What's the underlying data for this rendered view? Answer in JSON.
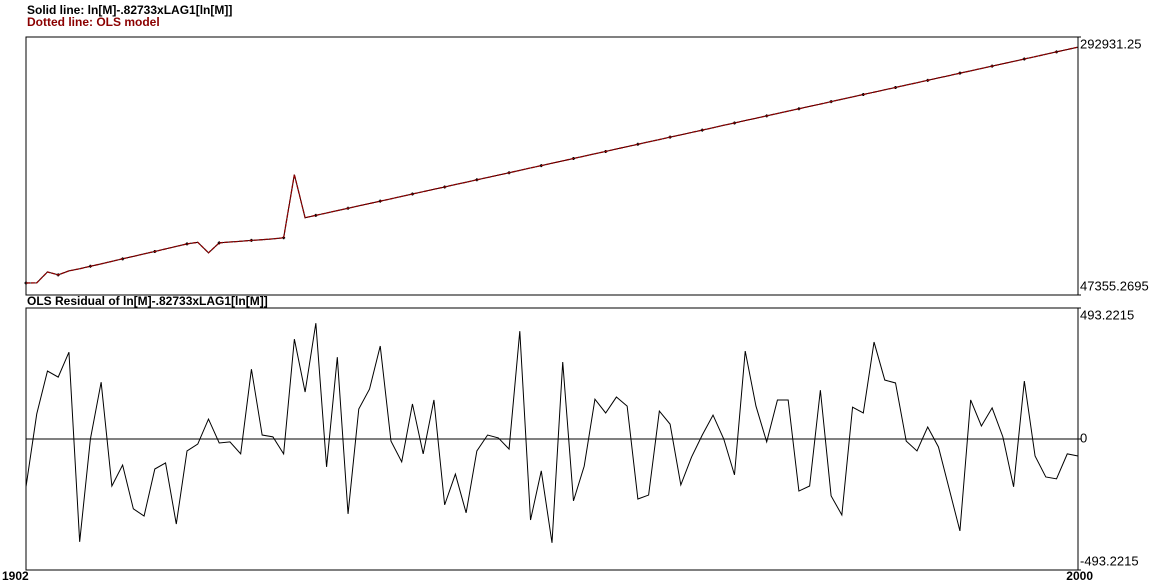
{
  "chart_data": [
    {
      "type": "line",
      "x": [
        1902,
        1903,
        1904,
        1905,
        1906,
        1907,
        1908,
        1909,
        1910,
        1911,
        1912,
        1913,
        1914,
        1915,
        1916,
        1917,
        1918,
        1919,
        1920,
        1921,
        1922,
        1923,
        1924,
        1925,
        1926,
        1927,
        1928,
        1929,
        1930,
        1931,
        1932,
        1933,
        1934,
        1935,
        1936,
        1937,
        1938,
        1939,
        1940,
        1941,
        1942,
        1943,
        1944,
        1945,
        1946,
        1947,
        1948,
        1949,
        1950,
        1951,
        1952,
        1953,
        1954,
        1955,
        1956,
        1957,
        1958,
        1959,
        1960,
        1961,
        1962,
        1963,
        1964,
        1965,
        1966,
        1967,
        1968,
        1969,
        1970,
        1971,
        1972,
        1973,
        1974,
        1975,
        1976,
        1977,
        1978,
        1979,
        1980,
        1981,
        1982,
        1983,
        1984,
        1985,
        1986,
        1987,
        1988,
        1989,
        1990,
        1991,
        1992,
        1993,
        1994,
        1995,
        1996,
        1997,
        1998,
        1999,
        2000
      ],
      "xlim": [
        1902,
        2000
      ],
      "ylim": [
        47355.2695,
        292931.25
      ],
      "yticks": [
        47355.2695,
        292931.25
      ],
      "series": [
        {
          "name": "Solid line: ln[M]-.82733xLAG1[ln[M]]",
          "color": "#000000",
          "values": [
            58800,
            58900,
            69300,
            66500,
            70300,
            72300,
            74700,
            77000,
            79400,
            81800,
            84100,
            86500,
            88800,
            91200,
            93600,
            96000,
            97500,
            87500,
            97000,
            97800,
            98500,
            99300,
            100000,
            100800,
            101800,
            162000,
            120900,
            123200,
            125400,
            127700,
            129900,
            132200,
            134400,
            136700,
            138900,
            141200,
            143500,
            145700,
            148000,
            150200,
            152500,
            154700,
            157000,
            159200,
            161500,
            163700,
            166000,
            168300,
            170500,
            172800,
            175000,
            177300,
            179500,
            181800,
            184000,
            186300,
            188600,
            190800,
            193100,
            195300,
            197600,
            199800,
            202100,
            204300,
            206600,
            208900,
            211100,
            213400,
            215600,
            217900,
            220100,
            222400,
            224600,
            226900,
            229100,
            231400,
            233700,
            235900,
            238200,
            240400,
            242700,
            244900,
            247200,
            249400,
            251700,
            254000,
            256200,
            258500,
            260700,
            263000,
            265200,
            267500,
            269700,
            272000,
            274200,
            276500,
            278800,
            281000,
            283300
          ]
        },
        {
          "name": "Dotted line: OLS model",
          "color": "#8b0000",
          "values": [
            58800,
            58900,
            69300,
            66500,
            70300,
            72300,
            74700,
            77000,
            79400,
            81800,
            84100,
            86500,
            88800,
            91200,
            93600,
            96000,
            97500,
            87500,
            97000,
            97800,
            98500,
            99300,
            100000,
            100800,
            101800,
            162000,
            120900,
            123200,
            125400,
            127700,
            129900,
            132200,
            134400,
            136700,
            138900,
            141200,
            143500,
            145700,
            148000,
            150200,
            152500,
            154700,
            157000,
            159200,
            161500,
            163700,
            166000,
            168300,
            170500,
            172800,
            175000,
            177300,
            179500,
            181800,
            184000,
            186300,
            188600,
            190800,
            193100,
            195300,
            197600,
            199800,
            202100,
            204300,
            206600,
            208900,
            211100,
            213400,
            215600,
            217900,
            220100,
            222400,
            224600,
            226900,
            229100,
            231400,
            233700,
            235900,
            238200,
            240400,
            242700,
            244900,
            247200,
            249400,
            251700,
            254000,
            256200,
            258500,
            260700,
            263000,
            265200,
            267500,
            269700,
            272000,
            274200,
            276500,
            278800,
            281000,
            283300
          ]
        }
      ]
    },
    {
      "type": "line",
      "title": "OLS Residual of ln[M]-.82733xLAG1[ln[M]]",
      "color": "#000000",
      "x": [
        1902,
        1903,
        1904,
        1905,
        1906,
        1907,
        1908,
        1909,
        1910,
        1911,
        1912,
        1913,
        1914,
        1915,
        1916,
        1917,
        1918,
        1919,
        1920,
        1921,
        1922,
        1923,
        1924,
        1925,
        1926,
        1927,
        1928,
        1929,
        1930,
        1931,
        1932,
        1933,
        1934,
        1935,
        1936,
        1937,
        1938,
        1939,
        1940,
        1941,
        1942,
        1943,
        1944,
        1945,
        1946,
        1947,
        1948,
        1949,
        1950,
        1951,
        1952,
        1953,
        1954,
        1955,
        1956,
        1957,
        1958,
        1959,
        1960,
        1961,
        1962,
        1963,
        1964,
        1965,
        1966,
        1967,
        1968,
        1969,
        1970,
        1971,
        1972,
        1973,
        1974,
        1975,
        1976,
        1977,
        1978,
        1979,
        1980,
        1981,
        1982,
        1983,
        1984,
        1985,
        1986,
        1987,
        1988,
        1989,
        1990,
        1991,
        1992,
        1993,
        1994,
        1995,
        1996,
        1997,
        1998,
        1999,
        2000
      ],
      "values": [
        -180,
        94,
        256,
        233,
        327,
        -387,
        0,
        214,
        -177,
        -98,
        -263,
        -290,
        -113,
        -90,
        -320,
        -45,
        -19,
        75,
        -15,
        -11,
        -56,
        263,
        15,
        8,
        -56,
        376,
        177,
        436,
        -105,
        308,
        -282,
        113,
        188,
        350,
        -8,
        -86,
        132,
        -56,
        147,
        -248,
        -132,
        -278,
        -45,
        15,
        4,
        -38,
        406,
        -305,
        -120,
        -391,
        290,
        -233,
        -102,
        150,
        98,
        158,
        124,
        -226,
        -211,
        105,
        56,
        -173,
        -68,
        15,
        90,
        0,
        -135,
        331,
        124,
        -11,
        147,
        147,
        -196,
        -177,
        184,
        -214,
        -286,
        120,
        98,
        365,
        222,
        211,
        -8,
        -45,
        45,
        -30,
        -188,
        -346,
        147,
        49,
        117,
        8,
        -180,
        218,
        -64,
        -143,
        -150,
        -56,
        -64
      ],
      "xlim": [
        1902,
        2000
      ],
      "xticks": [
        1902,
        2000
      ],
      "ylim": [
        -493.2215,
        493.2215
      ],
      "yticks": [
        -493.2215,
        0,
        493.2215
      ],
      "zero_line": true
    }
  ]
}
